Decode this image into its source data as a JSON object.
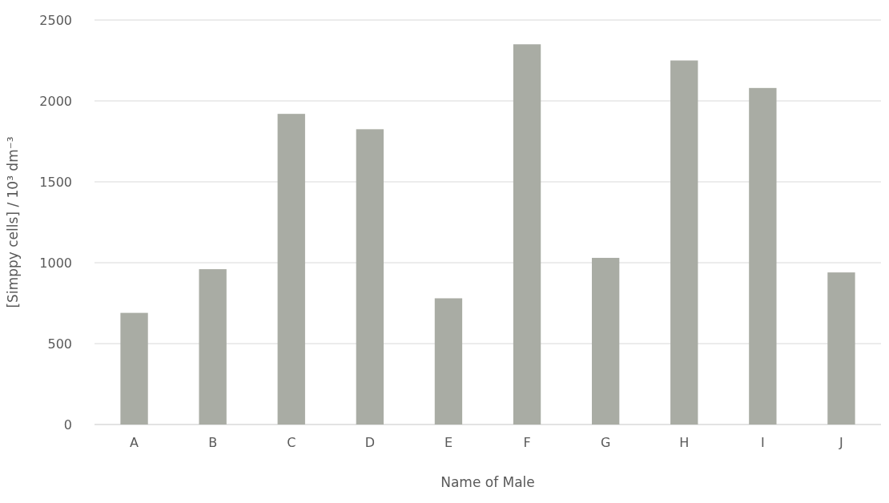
{
  "chart_data": {
    "type": "bar",
    "xlabel": "Name of Male",
    "ylabel": "[Simppy cells] / 10³ dm⁻³",
    "categories": [
      "A",
      "B",
      "C",
      "D",
      "E",
      "F",
      "G",
      "H",
      "I",
      "J"
    ],
    "values": [
      690,
      960,
      1920,
      1825,
      780,
      2350,
      1030,
      2250,
      2080,
      940
    ],
    "color": "#a9aca4",
    "ylim": [
      0,
      2500
    ],
    "yticks": [
      0,
      500,
      1000,
      1500,
      2000,
      2500
    ],
    "grid": "y"
  }
}
